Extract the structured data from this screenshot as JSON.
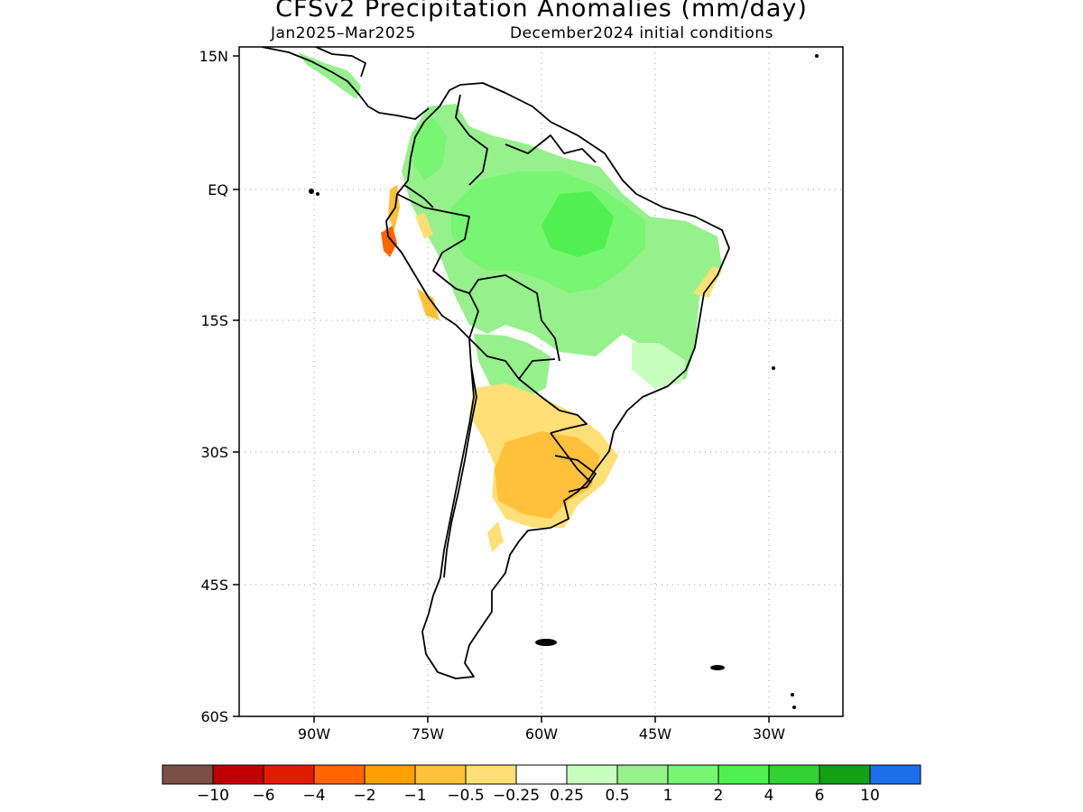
{
  "title": "CFSv2 Precipitation Anomalies (mm/day)",
  "subtitle_left": "Jan2025–Mar2025",
  "subtitle_right": "December2024 initial conditions",
  "map": {
    "lat_labels": [
      "15N",
      "EQ",
      "15S",
      "30S",
      "45S",
      "60S"
    ],
    "lon_labels": [
      "90W",
      "75W",
      "60W",
      "45W",
      "30W"
    ],
    "extent": {
      "lon": [
        -100,
        -20
      ],
      "lat": [
        -60,
        16
      ]
    }
  },
  "colorbar": {
    "colors": [
      "#7a5046",
      "#c00000",
      "#e01c00",
      "#ff6600",
      "#ffa000",
      "#ffc03c",
      "#ffe078",
      "#ffffff",
      "#c8ffc0",
      "#96f08c",
      "#78f572",
      "#50f050",
      "#32d232",
      "#14a014",
      "#1e6eeb"
    ],
    "labels": [
      "−10",
      "−6",
      "−4",
      "−2",
      "−1",
      "−0.5",
      "−0.25",
      "0.25",
      "0.5",
      "1",
      "2",
      "4",
      "6",
      "10"
    ]
  },
  "legend_colors": {
    "dry_moderate": "#ffc03c",
    "dry_light": "#ffe078",
    "dry_strong": "#ff6600",
    "wet_light": "#c8ffc0",
    "wet_moderate": "#96f08c",
    "wet_strong": "#50f050"
  }
}
